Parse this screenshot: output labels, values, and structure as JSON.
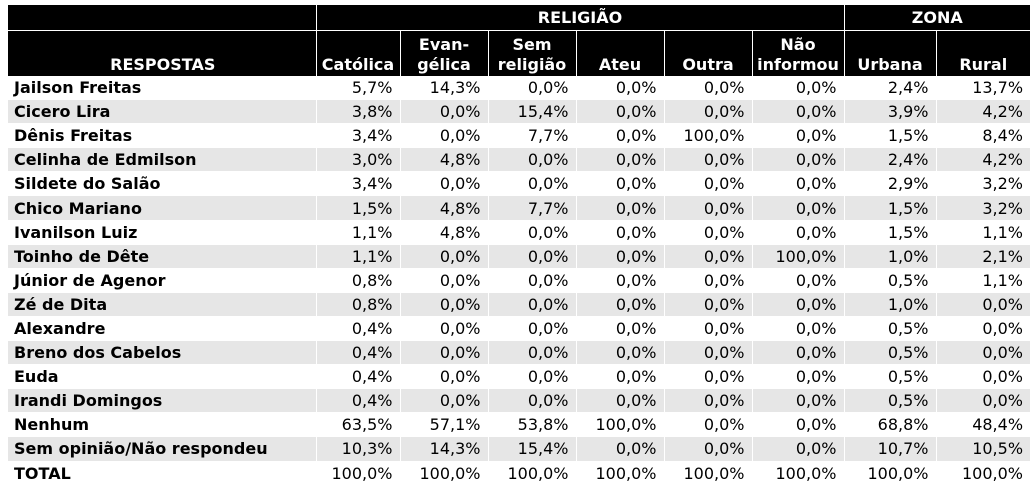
{
  "header": {
    "group_religiao": "RELIGIÃO",
    "group_zona": "ZONA",
    "respostas": "RESPOSTAS",
    "columns": [
      [
        "Católica"
      ],
      [
        "Evan-",
        "gélica"
      ],
      [
        "Sem",
        "religião"
      ],
      [
        "Ateu"
      ],
      [
        "Outra"
      ],
      [
        "Não",
        "informou"
      ],
      [
        "Urbana"
      ],
      [
        "Rural"
      ]
    ]
  },
  "rows": [
    {
      "name": "Jailson Freitas",
      "values": [
        "5,7%",
        "14,3%",
        "0,0%",
        "0,0%",
        "0,0%",
        "0,0%",
        "2,4%",
        "13,7%"
      ]
    },
    {
      "name": "Cicero Lira",
      "values": [
        "3,8%",
        "0,0%",
        "15,4%",
        "0,0%",
        "0,0%",
        "0,0%",
        "3,9%",
        "4,2%"
      ]
    },
    {
      "name": "Dênis Freitas",
      "values": [
        "3,4%",
        "0,0%",
        "7,7%",
        "0,0%",
        "100,0%",
        "0,0%",
        "1,5%",
        "8,4%"
      ]
    },
    {
      "name": "Celinha de Edmilson",
      "values": [
        "3,0%",
        "4,8%",
        "0,0%",
        "0,0%",
        "0,0%",
        "0,0%",
        "2,4%",
        "4,2%"
      ]
    },
    {
      "name": "Sildete do Salão",
      "values": [
        "3,4%",
        "0,0%",
        "0,0%",
        "0,0%",
        "0,0%",
        "0,0%",
        "2,9%",
        "3,2%"
      ]
    },
    {
      "name": "Chico Mariano",
      "values": [
        "1,5%",
        "4,8%",
        "7,7%",
        "0,0%",
        "0,0%",
        "0,0%",
        "1,5%",
        "3,2%"
      ]
    },
    {
      "name": "Ivanilson Luiz",
      "values": [
        "1,1%",
        "4,8%",
        "0,0%",
        "0,0%",
        "0,0%",
        "0,0%",
        "1,5%",
        "1,1%"
      ]
    },
    {
      "name": "Toinho de Dête",
      "values": [
        "1,1%",
        "0,0%",
        "0,0%",
        "0,0%",
        "0,0%",
        "100,0%",
        "1,0%",
        "2,1%"
      ]
    },
    {
      "name": "Júnior de Agenor",
      "values": [
        "0,8%",
        "0,0%",
        "0,0%",
        "0,0%",
        "0,0%",
        "0,0%",
        "0,5%",
        "1,1%"
      ]
    },
    {
      "name": "Zé de Dita",
      "values": [
        "0,8%",
        "0,0%",
        "0,0%",
        "0,0%",
        "0,0%",
        "0,0%",
        "1,0%",
        "0,0%"
      ]
    },
    {
      "name": "Alexandre",
      "values": [
        "0,4%",
        "0,0%",
        "0,0%",
        "0,0%",
        "0,0%",
        "0,0%",
        "0,5%",
        "0,0%"
      ]
    },
    {
      "name": "Breno dos Cabelos",
      "values": [
        "0,4%",
        "0,0%",
        "0,0%",
        "0,0%",
        "0,0%",
        "0,0%",
        "0,5%",
        "0,0%"
      ]
    },
    {
      "name": "Euda",
      "values": [
        "0,4%",
        "0,0%",
        "0,0%",
        "0,0%",
        "0,0%",
        "0,0%",
        "0,5%",
        "0,0%"
      ]
    },
    {
      "name": "Irandi Domingos",
      "values": [
        "0,4%",
        "0,0%",
        "0,0%",
        "0,0%",
        "0,0%",
        "0,0%",
        "0,5%",
        "0,0%"
      ]
    },
    {
      "name": "Nenhum",
      "values": [
        "63,5%",
        "57,1%",
        "53,8%",
        "100,0%",
        "0,0%",
        "0,0%",
        "68,8%",
        "48,4%"
      ]
    },
    {
      "name": "Sem opinião/Não respondeu",
      "values": [
        "10,3%",
        "14,3%",
        "15,4%",
        "0,0%",
        "0,0%",
        "0,0%",
        "10,7%",
        "10,5%"
      ]
    },
    {
      "name": "TOTAL",
      "values": [
        "100,0%",
        "100,0%",
        "100,0%",
        "100,0%",
        "100,0%",
        "100,0%",
        "100,0%",
        "100,0%"
      ]
    }
  ]
}
